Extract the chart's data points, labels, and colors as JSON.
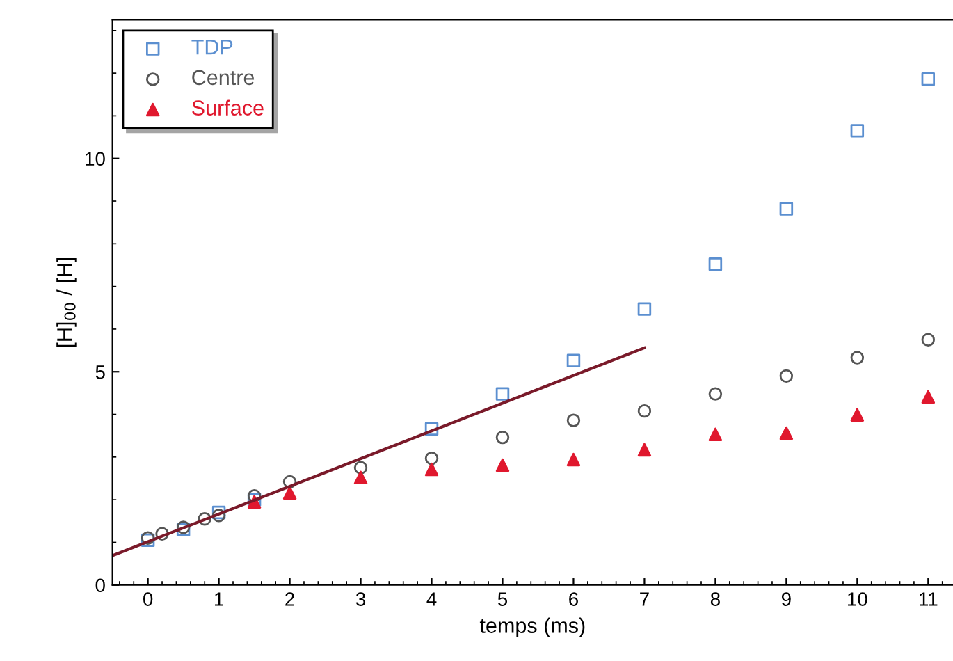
{
  "chart_data": {
    "type": "scatter",
    "xlabel": "temps (ms)",
    "ylabel": "[H]$_{00}$ / [H]",
    "xlim": [
      -0.5,
      11.35
    ],
    "ylim": [
      0,
      13.25
    ],
    "xticks": [
      0,
      1,
      2,
      3,
      4,
      5,
      6,
      7,
      8,
      9,
      10,
      11
    ],
    "yticks": [
      0,
      5,
      10
    ],
    "legend": "top left",
    "grid": false,
    "series": [
      {
        "name": "TDP",
        "color": "#5b8fd0",
        "marker": "square",
        "x": [
          0,
          0.5,
          1,
          1.5,
          4,
          5,
          6,
          7,
          8,
          9,
          10,
          11
        ],
        "values": [
          1.05,
          1.3,
          1.7,
          2.0,
          3.66,
          4.48,
          5.26,
          6.47,
          7.52,
          8.82,
          10.65,
          11.86
        ]
      },
      {
        "name": "Centre",
        "color": "#555555",
        "marker": "circle",
        "x": [
          0,
          0.2,
          0.5,
          0.8,
          1,
          1.5,
          2,
          3,
          4,
          5,
          6,
          7,
          8,
          9,
          10,
          11
        ],
        "values": [
          1.1,
          1.2,
          1.35,
          1.55,
          1.63,
          2.09,
          2.42,
          2.75,
          2.97,
          3.46,
          3.86,
          4.08,
          4.48,
          4.9,
          5.33,
          5.75
        ]
      },
      {
        "name": "Surface",
        "color": "#e0182e",
        "marker": "triangle",
        "x": [
          1.5,
          2,
          3,
          4,
          5,
          6,
          7,
          8,
          9,
          10,
          11
        ],
        "values": [
          1.95,
          2.16,
          2.52,
          2.71,
          2.81,
          2.94,
          3.17,
          3.53,
          3.56,
          3.99,
          4.41
        ]
      },
      {
        "type": "line",
        "color": "#7a1a2a",
        "line_style": "solid",
        "marker": "none",
        "x": [
          -0.5,
          7
        ],
        "values": [
          0.69,
          5.56
        ]
      }
    ]
  }
}
